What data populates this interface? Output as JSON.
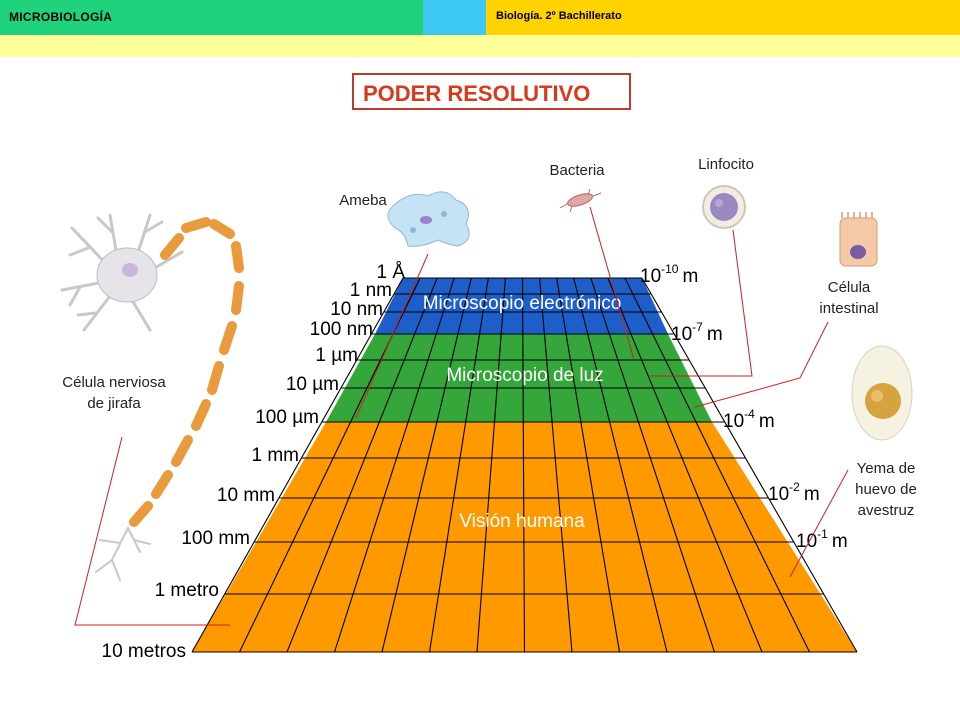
{
  "header": {
    "subject": "MICROBIOLOGÍA",
    "course": "Biología. 2º Bachillerato"
  },
  "title": "PODER RESOLUTIVO",
  "bands": [
    {
      "name": "Microscopio electrónico",
      "color": "#1e5ec8"
    },
    {
      "name": "Microscopio de luz",
      "color": "#34a63a"
    },
    {
      "name": "Visión humana",
      "color": "#ff9900"
    }
  ],
  "scale_left": [
    "1 Å",
    "1 nm",
    "10 nm",
    "100 nm",
    "1 µm",
    "10 µm",
    "100 µm",
    "1 mm",
    "10 mm",
    "100 mm",
    "1 metro",
    "10 metros"
  ],
  "scale_right": [
    {
      "base": "10",
      "exp": "-10",
      "unit": "m"
    },
    {
      "base": "10",
      "exp": "-7",
      "unit": "m"
    },
    {
      "base": "10",
      "exp": "-4",
      "unit": "m"
    },
    {
      "base": "10",
      "exp": "-2",
      "unit": "m"
    },
    {
      "base": "10",
      "exp": "-1",
      "unit": "m"
    }
  ],
  "specimens": {
    "ameba": "Ameba",
    "bacteria": "Bacteria",
    "linfocito": "Linfocito",
    "celula_intestinal": "Célula intestinal",
    "celula_nerviosa": "Célula nerviosa de jirafa",
    "yema": "Yema de huevo de avestruz"
  },
  "colors": {
    "electron": "#1e5ec8",
    "light": "#34a63a",
    "human": "#ff9900",
    "leader": "#cc2020"
  }
}
